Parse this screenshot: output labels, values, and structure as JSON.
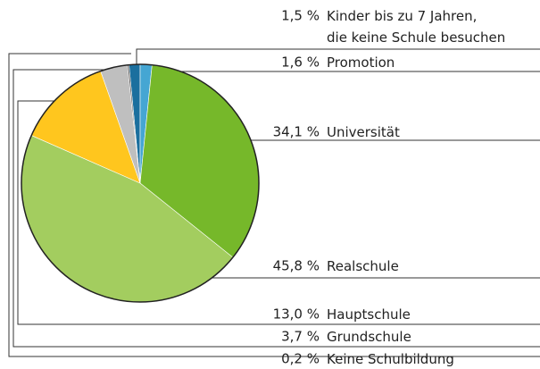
{
  "chart_data": {
    "type": "pie",
    "categories": [
      "Kinder bis zu 7 Jahren,\ndie keine Schule besuchen",
      "Promotion",
      "Universität",
      "Realschule",
      "Hauptschule",
      "Grundschule",
      "Keine Schulbildung"
    ],
    "values": [
      1.5,
      1.6,
      34.1,
      45.8,
      13.0,
      3.7,
      0.2
    ],
    "value_labels": [
      "1,5 %",
      "1,6 %",
      "34,1 %",
      "45,8 %",
      "13,0 %",
      "3,7 %",
      "0,2 %"
    ],
    "colors": [
      "#1b6f9e",
      "#45a6d3",
      "#76b82a",
      "#a3cd5f",
      "#ffc61e",
      "#bfbfbf",
      "#4d4d4d"
    ]
  }
}
